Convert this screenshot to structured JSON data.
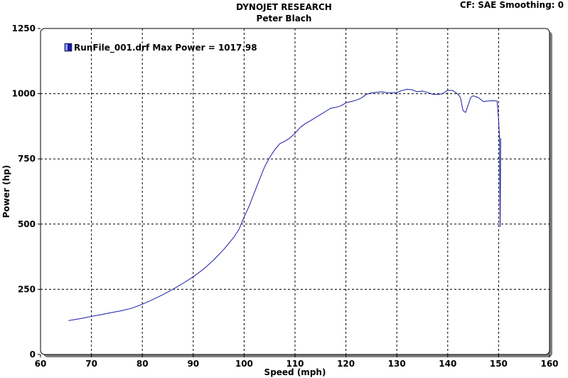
{
  "header": {
    "title": "DYNOJET RESEARCH",
    "subtitle": "Peter Blach",
    "cf_info": "CF: SAE  Smoothing: 0"
  },
  "colors": {
    "series": "#1a1aa8",
    "grid": "#000000",
    "background": "#ffffff",
    "shadow": "#808080"
  },
  "chart_data": {
    "type": "line",
    "xlabel": "Speed (mph)",
    "ylabel": "Power (hp)",
    "xlim": [
      60,
      160
    ],
    "ylim": [
      0,
      1250
    ],
    "xticks": [
      60,
      70,
      80,
      90,
      100,
      110,
      120,
      130,
      140,
      150,
      160
    ],
    "yticks": [
      0,
      250,
      500,
      750,
      1000,
      1250
    ],
    "grid": true,
    "legend_position": "top-left",
    "series": [
      {
        "name": "RunFile_001.drf Max Power = 1017.98",
        "points": [
          [
            65.5,
            130
          ],
          [
            68,
            138
          ],
          [
            70,
            146
          ],
          [
            72,
            153
          ],
          [
            74,
            161
          ],
          [
            76,
            168
          ],
          [
            78,
            178
          ],
          [
            80,
            193
          ],
          [
            82,
            210
          ],
          [
            84,
            229
          ],
          [
            86,
            250
          ],
          [
            88,
            273
          ],
          [
            90,
            298
          ],
          [
            92,
            327
          ],
          [
            94,
            362
          ],
          [
            96,
            403
          ],
          [
            98,
            450
          ],
          [
            99,
            480
          ],
          [
            100,
            527
          ],
          [
            101,
            570
          ],
          [
            102,
            620
          ],
          [
            103,
            670
          ],
          [
            104,
            718
          ],
          [
            105,
            755
          ],
          [
            106,
            785
          ],
          [
            107,
            808
          ],
          [
            108,
            818
          ],
          [
            109,
            830
          ],
          [
            110,
            848
          ],
          [
            111,
            870
          ],
          [
            112,
            885
          ],
          [
            113,
            896
          ],
          [
            114,
            908
          ],
          [
            115,
            920
          ],
          [
            116,
            932
          ],
          [
            117,
            944
          ],
          [
            118,
            948
          ],
          [
            119,
            953
          ],
          [
            120,
            965
          ],
          [
            121,
            970
          ],
          [
            122,
            975
          ],
          [
            123,
            983
          ],
          [
            124,
            997
          ],
          [
            125,
            1003
          ],
          [
            126,
            1005
          ],
          [
            127,
            1007
          ],
          [
            128,
            1004
          ],
          [
            129,
            1003
          ],
          [
            130,
            1005
          ],
          [
            131,
            1012
          ],
          [
            132,
            1017
          ],
          [
            133,
            1015
          ],
          [
            134,
            1007
          ],
          [
            135,
            1010
          ],
          [
            136,
            1005
          ],
          [
            137,
            998
          ],
          [
            138,
            997
          ],
          [
            139,
            1000
          ],
          [
            140,
            1013
          ],
          [
            141,
            1012
          ],
          [
            142,
            998
          ],
          [
            142.5,
            985
          ],
          [
            143,
            935
          ],
          [
            143.5,
            928
          ],
          [
            144,
            955
          ],
          [
            144.5,
            985
          ],
          [
            145,
            992
          ],
          [
            146,
            985
          ],
          [
            147,
            970
          ],
          [
            148,
            972
          ],
          [
            149,
            973
          ],
          [
            149.7,
            972
          ],
          [
            150.0,
            900
          ],
          [
            150.2,
            820
          ],
          [
            150.25,
            600
          ],
          [
            150.3,
            490
          ],
          [
            150.35,
            620
          ],
          [
            150.4,
            830
          ]
        ]
      }
    ]
  }
}
